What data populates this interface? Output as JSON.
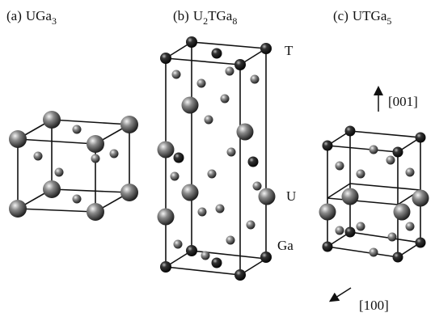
{
  "panels": [
    {
      "label": "(a)",
      "formula": [
        {
          "text": "UGa",
          "sub": "3"
        }
      ]
    },
    {
      "label": "(b)",
      "formula": [
        {
          "text": "U",
          "sub": "2"
        },
        {
          "text": "TGa",
          "sub": "8"
        }
      ]
    },
    {
      "label": "(c)",
      "formula": [
        {
          "text": "UTGa",
          "sub": "5"
        }
      ]
    }
  ],
  "atom_labels": [
    "T",
    "U",
    "Ga"
  ],
  "directions": [
    "[001]",
    "[100]"
  ]
}
